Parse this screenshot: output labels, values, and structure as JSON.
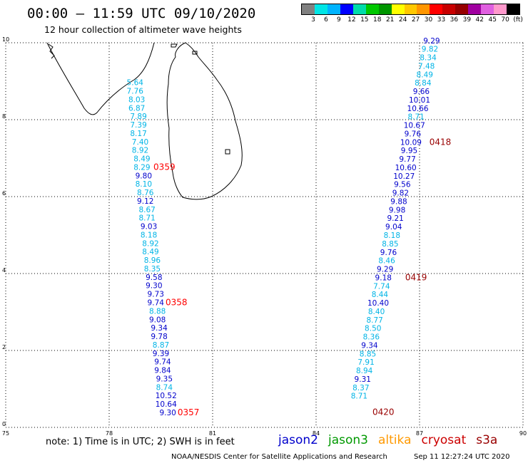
{
  "header": {
    "title": "00:00 – 11:59 UTC 09/10/2020",
    "subtitle": "12 hour collection of altimeter wave heights"
  },
  "legend_scale": {
    "colors": [
      "#808080",
      "#00e5e5",
      "#00b4ff",
      "#0000ff",
      "#00dcaa",
      "#00c800",
      "#009600",
      "#ffff00",
      "#ffc800",
      "#ff9600",
      "#ff0000",
      "#c80000",
      "#960000",
      "#a000a0",
      "#e060e0",
      "#ff99cc",
      "#000000"
    ],
    "labels": [
      "3",
      "6",
      "9",
      "12",
      "15",
      "18",
      "21",
      "24",
      "27",
      "30",
      "33",
      "36",
      "39",
      "42",
      "45",
      "70",
      "(ft)"
    ]
  },
  "footer": {
    "note": "note: 1) Time is in UTC; 2) SWH is in feet",
    "credit": "NOAA/NESDIS Center for Satellite Applications and Research",
    "timestamp": "Sep 11 12:27:24 UTC 2020",
    "satellites": [
      {
        "name": "jason2",
        "color": "#0000cc"
      },
      {
        "name": "jason3",
        "color": "#009900"
      },
      {
        "name": "altika",
        "color": "#ff9900"
      },
      {
        "name": "cryosat",
        "color": "#cc0000"
      },
      {
        "name": "s3a",
        "color": "#990000"
      }
    ]
  },
  "chart_data": {
    "type": "scatter",
    "x_ticks": [
      "75",
      "78",
      "81",
      "84",
      "87",
      "90"
    ],
    "y_ticks": [
      "0",
      "2",
      "4",
      "6",
      "8",
      "10"
    ],
    "xlim": [
      75,
      90
    ],
    "ylim": [
      0,
      10
    ],
    "grid": true,
    "colors": {
      "light": "#00b4e6",
      "dark": "#0000cc",
      "time_red": "#ff0000",
      "time_dark": "#990000"
    },
    "tracks": [
      {
        "name": "west",
        "points": [
          {
            "x": 78.75,
            "y": 8.97,
            "v": "5.64",
            "c": "light"
          },
          {
            "x": 78.75,
            "y": 8.75,
            "v": "7.76",
            "c": "light"
          },
          {
            "x": 78.8,
            "y": 8.53,
            "v": "8.03",
            "c": "light"
          },
          {
            "x": 78.8,
            "y": 8.31,
            "v": "6.87",
            "c": "light"
          },
          {
            "x": 78.85,
            "y": 8.09,
            "v": "7.89",
            "c": "light"
          },
          {
            "x": 78.85,
            "y": 7.87,
            "v": "7.39",
            "c": "light"
          },
          {
            "x": 78.85,
            "y": 7.65,
            "v": "8.17",
            "c": "light"
          },
          {
            "x": 78.9,
            "y": 7.43,
            "v": "7.40",
            "c": "light"
          },
          {
            "x": 78.9,
            "y": 7.21,
            "v": "8.92",
            "c": "light"
          },
          {
            "x": 78.95,
            "y": 6.99,
            "v": "8.49",
            "c": "light"
          },
          {
            "x": 78.95,
            "y": 6.77,
            "v": "8.29",
            "c": "light"
          },
          {
            "x": 79.0,
            "y": 6.55,
            "v": "9.80",
            "c": "dark"
          },
          {
            "x": 79.0,
            "y": 6.33,
            "v": "8.10",
            "c": "light"
          },
          {
            "x": 79.05,
            "y": 6.11,
            "v": "8.76",
            "c": "light"
          },
          {
            "x": 79.05,
            "y": 5.89,
            "v": "9.12",
            "c": "dark"
          },
          {
            "x": 79.1,
            "y": 5.67,
            "v": "8.67",
            "c": "light"
          },
          {
            "x": 79.1,
            "y": 5.45,
            "v": "8.71",
            "c": "light"
          },
          {
            "x": 79.15,
            "y": 5.23,
            "v": "9.03",
            "c": "dark"
          },
          {
            "x": 79.15,
            "y": 5.01,
            "v": "8.18",
            "c": "light"
          },
          {
            "x": 79.2,
            "y": 4.79,
            "v": "8.92",
            "c": "light"
          },
          {
            "x": 79.2,
            "y": 4.57,
            "v": "8.49",
            "c": "light"
          },
          {
            "x": 79.25,
            "y": 4.35,
            "v": "8.96",
            "c": "light"
          },
          {
            "x": 79.25,
            "y": 4.13,
            "v": "8.35",
            "c": "light"
          },
          {
            "x": 79.3,
            "y": 3.91,
            "v": "9.58",
            "c": "dark"
          },
          {
            "x": 79.3,
            "y": 3.69,
            "v": "9.30",
            "c": "dark"
          },
          {
            "x": 79.35,
            "y": 3.47,
            "v": "9.73",
            "c": "dark"
          },
          {
            "x": 79.35,
            "y": 3.25,
            "v": "9.74",
            "c": "dark"
          },
          {
            "x": 79.4,
            "y": 3.03,
            "v": "8.88",
            "c": "light"
          },
          {
            "x": 79.4,
            "y": 2.81,
            "v": "9.08",
            "c": "dark"
          },
          {
            "x": 79.45,
            "y": 2.59,
            "v": "9.34",
            "c": "dark"
          },
          {
            "x": 79.45,
            "y": 2.37,
            "v": "9.78",
            "c": "dark"
          },
          {
            "x": 79.5,
            "y": 2.15,
            "v": "8.87",
            "c": "light"
          },
          {
            "x": 79.5,
            "y": 1.93,
            "v": "9.39",
            "c": "dark"
          },
          {
            "x": 79.55,
            "y": 1.71,
            "v": "9.74",
            "c": "dark"
          },
          {
            "x": 79.55,
            "y": 1.49,
            "v": "9.84",
            "c": "dark"
          },
          {
            "x": 79.6,
            "y": 1.27,
            "v": "9.35",
            "c": "dark"
          },
          {
            "x": 79.6,
            "y": 1.05,
            "v": "8.74",
            "c": "light"
          },
          {
            "x": 79.65,
            "y": 0.83,
            "v": "10.52",
            "c": "dark"
          },
          {
            "x": 79.65,
            "y": 0.61,
            "v": "10.64",
            "c": "dark"
          },
          {
            "x": 79.7,
            "y": 0.39,
            "v": "9.30",
            "c": "dark"
          }
        ],
        "times": [
          {
            "x": 79.6,
            "y": 6.77,
            "v": "0359",
            "c": "time_red"
          },
          {
            "x": 79.95,
            "y": 3.25,
            "v": "0358",
            "c": "time_red"
          },
          {
            "x": 80.3,
            "y": 0.39,
            "v": "0357",
            "c": "time_red"
          }
        ]
      },
      {
        "name": "east",
        "points": [
          {
            "x": 87.35,
            "y": 10.06,
            "v": "9.29",
            "c": "dark"
          },
          {
            "x": 87.3,
            "y": 9.84,
            "v": "9.82",
            "c": "light"
          },
          {
            "x": 87.25,
            "y": 9.62,
            "v": "8.34",
            "c": "light"
          },
          {
            "x": 87.2,
            "y": 9.4,
            "v": "7.48",
            "c": "light"
          },
          {
            "x": 87.15,
            "y": 9.18,
            "v": "8.49",
            "c": "light"
          },
          {
            "x": 87.1,
            "y": 8.96,
            "v": "8.84",
            "c": "light"
          },
          {
            "x": 87.05,
            "y": 8.74,
            "v": "9.66",
            "c": "dark"
          },
          {
            "x": 87.0,
            "y": 8.52,
            "v": "10.01",
            "c": "dark"
          },
          {
            "x": 86.95,
            "y": 8.3,
            "v": "10.66",
            "c": "dark"
          },
          {
            "x": 86.9,
            "y": 8.08,
            "v": "8.71",
            "c": "light"
          },
          {
            "x": 86.85,
            "y": 7.86,
            "v": "10.67",
            "c": "dark"
          },
          {
            "x": 86.8,
            "y": 7.64,
            "v": "9.76",
            "c": "dark"
          },
          {
            "x": 86.75,
            "y": 7.42,
            "v": "10.09",
            "c": "dark"
          },
          {
            "x": 86.7,
            "y": 7.2,
            "v": "9.95",
            "c": "dark"
          },
          {
            "x": 86.65,
            "y": 6.98,
            "v": "9.77",
            "c": "dark"
          },
          {
            "x": 86.6,
            "y": 6.76,
            "v": "10.60",
            "c": "dark"
          },
          {
            "x": 86.55,
            "y": 6.54,
            "v": "10.27",
            "c": "dark"
          },
          {
            "x": 86.5,
            "y": 6.32,
            "v": "9.56",
            "c": "dark"
          },
          {
            "x": 86.45,
            "y": 6.1,
            "v": "9.82",
            "c": "dark"
          },
          {
            "x": 86.4,
            "y": 5.88,
            "v": "9.88",
            "c": "dark"
          },
          {
            "x": 86.35,
            "y": 5.66,
            "v": "9.98",
            "c": "dark"
          },
          {
            "x": 86.3,
            "y": 5.44,
            "v": "9.21",
            "c": "dark"
          },
          {
            "x": 86.25,
            "y": 5.22,
            "v": "9.04",
            "c": "dark"
          },
          {
            "x": 86.2,
            "y": 5.0,
            "v": "8.18",
            "c": "light"
          },
          {
            "x": 86.15,
            "y": 4.78,
            "v": "8.85",
            "c": "light"
          },
          {
            "x": 86.1,
            "y": 4.56,
            "v": "9.76",
            "c": "dark"
          },
          {
            "x": 86.05,
            "y": 4.34,
            "v": "8.46",
            "c": "light"
          },
          {
            "x": 86.0,
            "y": 4.12,
            "v": "9.29",
            "c": "dark"
          },
          {
            "x": 85.95,
            "y": 3.9,
            "v": "9.18",
            "c": "dark"
          },
          {
            "x": 85.9,
            "y": 3.68,
            "v": "7.74",
            "c": "light"
          },
          {
            "x": 85.85,
            "y": 3.46,
            "v": "8.44",
            "c": "light"
          },
          {
            "x": 85.8,
            "y": 3.24,
            "v": "10.40",
            "c": "dark"
          },
          {
            "x": 85.75,
            "y": 3.02,
            "v": "8.40",
            "c": "light"
          },
          {
            "x": 85.7,
            "y": 2.8,
            "v": "8.77",
            "c": "light"
          },
          {
            "x": 85.65,
            "y": 2.58,
            "v": "8.50",
            "c": "light"
          },
          {
            "x": 85.6,
            "y": 2.36,
            "v": "8.36",
            "c": "light"
          },
          {
            "x": 85.55,
            "y": 2.14,
            "v": "9.34",
            "c": "dark"
          },
          {
            "x": 85.5,
            "y": 1.92,
            "v": "8.85",
            "c": "light"
          },
          {
            "x": 85.45,
            "y": 1.7,
            "v": "7.91",
            "c": "light"
          },
          {
            "x": 85.4,
            "y": 1.48,
            "v": "8.94",
            "c": "light"
          },
          {
            "x": 85.35,
            "y": 1.26,
            "v": "9.31",
            "c": "dark"
          },
          {
            "x": 85.3,
            "y": 1.04,
            "v": "8.37",
            "c": "light"
          },
          {
            "x": 85.25,
            "y": 0.82,
            "v": "8.71",
            "c": "light"
          }
        ],
        "times": [
          {
            "x": 87.6,
            "y": 7.42,
            "v": "0418",
            "c": "time_dark"
          },
          {
            "x": 86.9,
            "y": 3.9,
            "v": "0419",
            "c": "time_dark"
          },
          {
            "x": 85.95,
            "y": 0.4,
            "v": "0420",
            "c": "time_dark"
          }
        ]
      }
    ]
  }
}
